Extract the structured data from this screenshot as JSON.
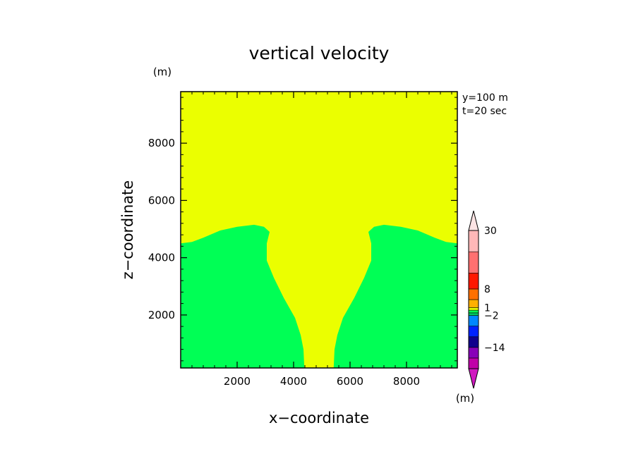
{
  "chart_data": {
    "type": "heatmap",
    "title": "vertical velocity",
    "xlabel": "x−coordinate",
    "ylabel": "z−coordinate",
    "y_unit": "(m)",
    "annotations": [
      "y=100 m",
      "t=20 sec"
    ],
    "xlim": [
      0,
      9800
    ],
    "ylim": [
      150,
      9800
    ],
    "x_ticks": [
      2000,
      4000,
      6000,
      8000
    ],
    "y_ticks": [
      2000,
      4000,
      6000,
      8000
    ],
    "x_tick_labels": [
      "2000",
      "4000",
      "6000",
      "8000"
    ],
    "y_tick_labels": [
      "2000",
      "4000",
      "6000",
      "8000"
    ],
    "regions": [
      {
        "name": "background",
        "color": "#ebff00",
        "polygon": [
          [
            0,
            150
          ],
          [
            9800,
            150
          ],
          [
            9800,
            9800
          ],
          [
            0,
            9800
          ]
        ]
      },
      {
        "name": "left-lobe",
        "color": "#00ff55",
        "polygon": [
          [
            0,
            150
          ],
          [
            0,
            4500
          ],
          [
            400,
            4550
          ],
          [
            800,
            4700
          ],
          [
            1400,
            4950
          ],
          [
            2000,
            5080
          ],
          [
            2600,
            5150
          ],
          [
            2950,
            5080
          ],
          [
            3150,
            4900
          ],
          [
            3050,
            4500
          ],
          [
            3050,
            3900
          ],
          [
            3300,
            3300
          ],
          [
            3650,
            2600
          ],
          [
            4050,
            1900
          ],
          [
            4250,
            1300
          ],
          [
            4350,
            800
          ],
          [
            4380,
            150
          ]
        ]
      },
      {
        "name": "right-lobe",
        "color": "#00ff55",
        "polygon": [
          [
            9800,
            150
          ],
          [
            9800,
            4500
          ],
          [
            9400,
            4550
          ],
          [
            9000,
            4700
          ],
          [
            8400,
            4950
          ],
          [
            7800,
            5080
          ],
          [
            7200,
            5150
          ],
          [
            6850,
            5080
          ],
          [
            6650,
            4900
          ],
          [
            6750,
            4500
          ],
          [
            6750,
            3900
          ],
          [
            6500,
            3300
          ],
          [
            6150,
            2600
          ],
          [
            5750,
            1900
          ],
          [
            5550,
            1300
          ],
          [
            5450,
            800
          ],
          [
            5420,
            150
          ]
        ]
      }
    ],
    "colorbar": {
      "unit": "(m)",
      "bands": [
        {
          "color": "#c000a8",
          "from": -22,
          "to": -18
        },
        {
          "color": "#8800b8",
          "from": -18,
          "to": -14
        },
        {
          "color": "#10008c",
          "from": -14,
          "to": -10
        },
        {
          "color": "#0022ff",
          "from": -10,
          "to": -6
        },
        {
          "color": "#0088ff",
          "from": -6,
          "to": -2
        },
        {
          "color": "#00c860",
          "from": -2,
          "to": -1
        },
        {
          "color": "#00ff55",
          "from": -1,
          "to": 0
        },
        {
          "color": "#ebff00",
          "from": 0,
          "to": 1
        },
        {
          "color": "#ffb000",
          "from": 1,
          "to": 4
        },
        {
          "color": "#ff7000",
          "from": 4,
          "to": 8
        },
        {
          "color": "#ff1800",
          "from": 8,
          "to": 14
        },
        {
          "color": "#ff7070",
          "from": 14,
          "to": 22
        },
        {
          "color": "#ffb8b8",
          "from": 22,
          "to": 30
        }
      ],
      "labels": [
        {
          "text": "30",
          "value": 30
        },
        {
          "text": "8",
          "value": 8
        },
        {
          "text": "1",
          "value": 1
        },
        {
          "text": "−2",
          "value": -2
        },
        {
          "text": "−14",
          "value": -14
        }
      ],
      "over_color": "#fde4e4",
      "under_color": "#d018c0"
    }
  }
}
